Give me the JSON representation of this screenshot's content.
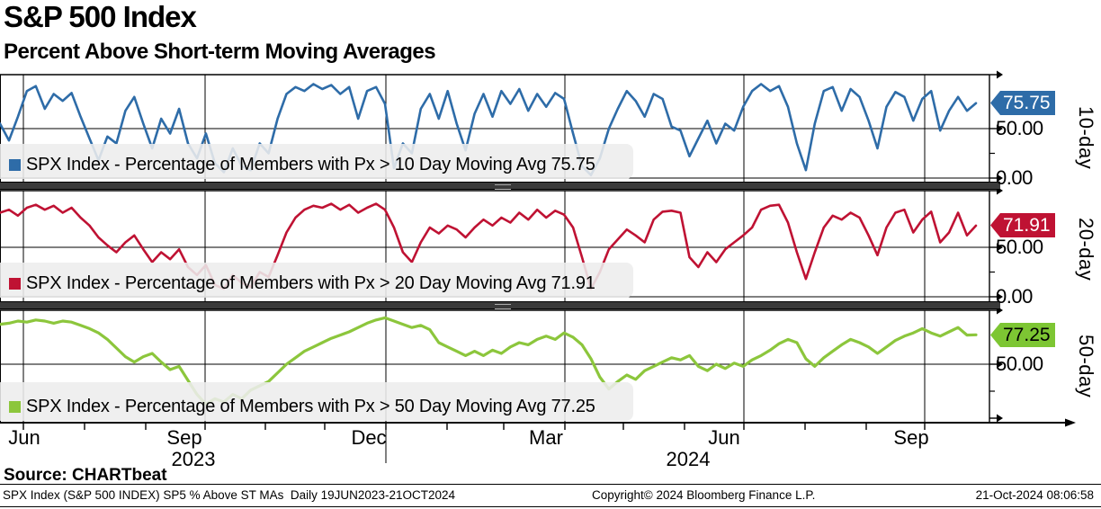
{
  "header": {
    "title": "S&P 500 Index",
    "subtitle": "Percent Above Short-term Moving Averages"
  },
  "panels": [
    {
      "side_label": "10-day",
      "legend_label": "SPX Index - Percentage of Members with Px > 10 Day Moving Avg 75.75",
      "last_value_label": "75.75",
      "tick_50": "50.00",
      "tick_0": "0.00",
      "color": "#2e6ca8"
    },
    {
      "side_label": "20-day",
      "legend_label": "SPX Index - Percentage of Members with Px > 20 Day Moving Avg 71.91",
      "last_value_label": "71.91",
      "tick_50": "50.00",
      "tick_0": "0.00",
      "color": "#bf1233"
    },
    {
      "side_label": "50-day",
      "legend_label": "SPX Index - Percentage of Members with Px > 50 Day Moving Avg 77.25",
      "last_value_label": "77.25",
      "tick_50": "50.00",
      "color": "#8cc63c"
    }
  ],
  "x_axis": {
    "month_labels": [
      "Jun",
      "Sep",
      "Dec",
      "Mar",
      "Jun",
      "Sep"
    ],
    "year_labels": [
      "2023",
      "2024"
    ]
  },
  "footer": {
    "source": "Source: CHARTbeat",
    "description": "SPX Index (S&P 500 INDEX) SP5 % Above ST MAs  Daily 19JUN2023-21OCT2024",
    "copyright": "Copyright© 2024 Bloomberg Finance L.P.",
    "timestamp": "21-Oct-2024 08:06:58"
  },
  "chart_data": [
    {
      "type": "line",
      "title": "SPX Index - Percentage of Members with Px > 10 Day Moving Avg",
      "ylabel": "10-day",
      "ylim": [
        0,
        100
      ],
      "x_range": "19JUN2023-21OCT2024",
      "grid": true,
      "legend_position": "bottom-left",
      "last_value": 75.75,
      "tick_values": [
        0,
        50
      ],
      "values": [
        55,
        38,
        62,
        88,
        93,
        70,
        85,
        78,
        86,
        62,
        40,
        18,
        42,
        35,
        68,
        82,
        55,
        30,
        60,
        45,
        70,
        35,
        20,
        45,
        15,
        6,
        30,
        12,
        8,
        35,
        25,
        60,
        85,
        92,
        88,
        95,
        90,
        94,
        85,
        92,
        60,
        88,
        92,
        75,
        10,
        35,
        25,
        70,
        85,
        60,
        88,
        55,
        28,
        65,
        85,
        62,
        88,
        75,
        90,
        68,
        85,
        72,
        86,
        80,
        45,
        12,
        3,
        20,
        50,
        70,
        88,
        78,
        62,
        85,
        80,
        52,
        48,
        22,
        40,
        58,
        35,
        55,
        48,
        72,
        88,
        95,
        88,
        93,
        72,
        35,
        8,
        55,
        88,
        92,
        68,
        90,
        82,
        58,
        30,
        72,
        87,
        82,
        58,
        80,
        88,
        48,
        68,
        82,
        68,
        75.75
      ]
    },
    {
      "type": "line",
      "title": "SPX Index - Percentage of Members with Px > 20 Day Moving Avg",
      "ylabel": "20-day",
      "ylim": [
        0,
        100
      ],
      "x_range": "19JUN2023-21OCT2024",
      "grid": true,
      "legend_position": "bottom-left",
      "last_value": 71.91,
      "tick_values": [
        0,
        50
      ],
      "values": [
        85,
        88,
        82,
        90,
        93,
        88,
        92,
        85,
        90,
        80,
        72,
        60,
        52,
        45,
        55,
        62,
        48,
        35,
        45,
        38,
        48,
        30,
        22,
        32,
        12,
        8,
        22,
        14,
        10,
        25,
        20,
        42,
        65,
        80,
        88,
        92,
        90,
        94,
        88,
        93,
        85,
        90,
        94,
        88,
        70,
        45,
        35,
        55,
        70,
        64,
        72,
        68,
        60,
        70,
        78,
        72,
        80,
        75,
        85,
        78,
        88,
        80,
        87,
        83,
        70,
        40,
        8,
        25,
        48,
        58,
        68,
        62,
        55,
        78,
        86,
        87,
        85,
        40,
        30,
        45,
        35,
        48,
        55,
        62,
        70,
        88,
        92,
        93,
        75,
        45,
        18,
        45,
        70,
        82,
        78,
        85,
        80,
        62,
        42,
        70,
        85,
        88,
        65,
        78,
        86,
        55,
        65,
        85,
        62,
        71.91
      ]
    },
    {
      "type": "line",
      "title": "SPX Index - Percentage of Members with Px > 50 Day Moving Avg",
      "ylabel": "50-day",
      "ylim": [
        0,
        100
      ],
      "x_range": "19JUN2023-21OCT2024",
      "grid": true,
      "legend_position": "bottom-left",
      "last_value": 77.25,
      "tick_values": [
        50
      ],
      "values": [
        87,
        88,
        90,
        89,
        91,
        90,
        88,
        90,
        89,
        86,
        83,
        79,
        73,
        65,
        57,
        52,
        57,
        60,
        52,
        45,
        48,
        35,
        22,
        13,
        18,
        15,
        22,
        18,
        26,
        30,
        34,
        42,
        50,
        56,
        62,
        66,
        70,
        74,
        77,
        80,
        84,
        88,
        91,
        93,
        90,
        87,
        84,
        86,
        82,
        70,
        66,
        62,
        58,
        62,
        58,
        63,
        60,
        66,
        70,
        68,
        73,
        76,
        73,
        79,
        75,
        68,
        55,
        38,
        27,
        34,
        40,
        36,
        44,
        48,
        52,
        56,
        54,
        58,
        48,
        44,
        50,
        46,
        51,
        48,
        54,
        58,
        63,
        69,
        73,
        70,
        55,
        48,
        56,
        62,
        68,
        73,
        70,
        66,
        60,
        66,
        72,
        76,
        79,
        83,
        79,
        76,
        80,
        84,
        77,
        77.25
      ]
    }
  ]
}
